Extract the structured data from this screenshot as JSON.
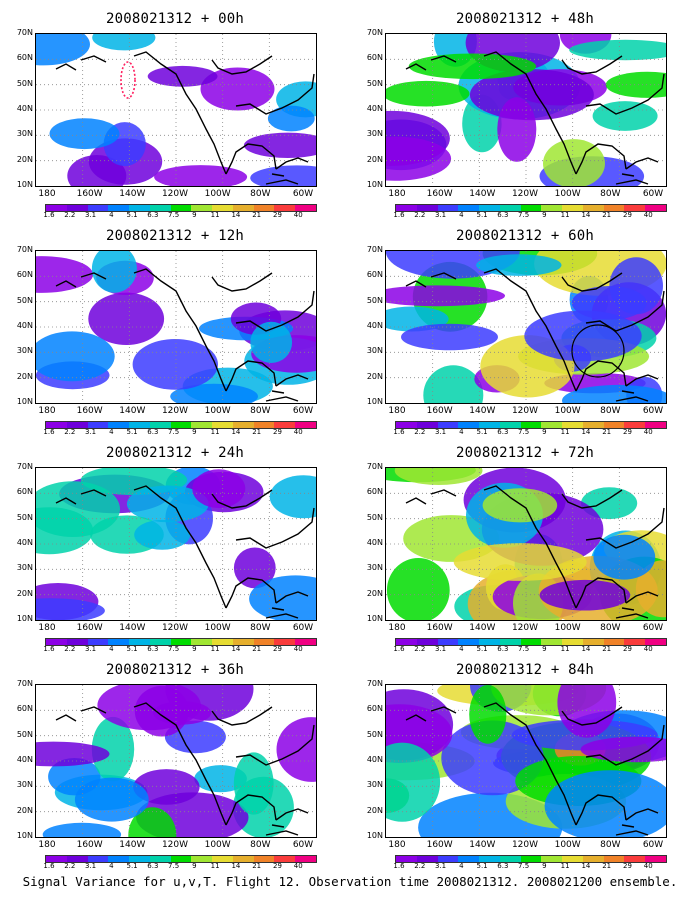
{
  "panels": [
    {
      "title": "2008021312 + 00h",
      "intensity": 0.15,
      "circle": false,
      "dotted_region": true
    },
    {
      "title": "2008021312 + 48h",
      "intensity": 0.55,
      "circle": false,
      "dotted_region": false
    },
    {
      "title": "2008021312 + 12h",
      "intensity": 0.25,
      "circle": false,
      "dotted_region": false
    },
    {
      "title": "2008021312 + 60h",
      "intensity": 0.65,
      "circle": true,
      "dotted_region": false
    },
    {
      "title": "2008021312 + 24h",
      "intensity": 0.35,
      "circle": false,
      "dotted_region": false
    },
    {
      "title": "2008021312 + 72h",
      "intensity": 0.75,
      "circle": false,
      "dotted_region": false
    },
    {
      "title": "2008021312 + 36h",
      "intensity": 0.45,
      "circle": false,
      "dotted_region": false
    },
    {
      "title": "2008021312 + 84h",
      "intensity": 0.85,
      "circle": false,
      "dotted_region": false
    }
  ],
  "lat_labels": [
    "70N",
    "60N",
    "50N",
    "40N",
    "30N",
    "20N",
    "10N"
  ],
  "lon_labels": [
    "180",
    "160W",
    "140W",
    "120W",
    "100W",
    "80W",
    "60W"
  ],
  "colorbar": {
    "labels": [
      "1.6",
      "2.2",
      "3.1",
      "4",
      "5.1",
      "6.3",
      "7.5",
      "9",
      "11",
      "14",
      "21",
      "29",
      "40"
    ],
    "colors": [
      "#8c00e6",
      "#6e00dc",
      "#3c3cff",
      "#0082ff",
      "#00b4e6",
      "#00d2aa",
      "#00dc00",
      "#a0e632",
      "#e6dc32",
      "#e6af2d",
      "#f08228",
      "#fa3c3c",
      "#f00082"
    ]
  },
  "caption": "Signal Variance for u,v,T. Flight 12. Observation time 2008021312. 2008021200 ensemble."
}
